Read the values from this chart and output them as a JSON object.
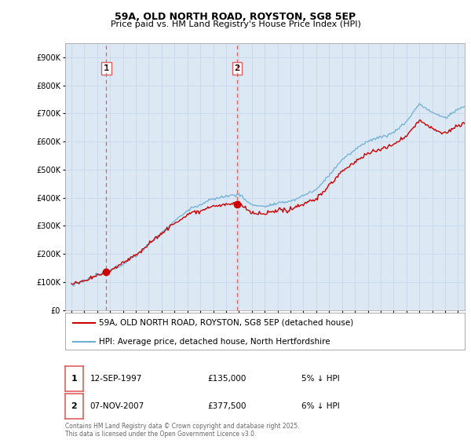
{
  "title1": "59A, OLD NORTH ROAD, ROYSTON, SG8 5EP",
  "title2": "Price paid vs. HM Land Registry's House Price Index (HPI)",
  "legend_line1": "59A, OLD NORTH ROAD, ROYSTON, SG8 5EP (detached house)",
  "legend_line2": "HPI: Average price, detached house, North Hertfordshire",
  "footer": "Contains HM Land Registry data © Crown copyright and database right 2025.\nThis data is licensed under the Open Government Licence v3.0.",
  "transaction1_label": "1",
  "transaction1_date": "12-SEP-1997",
  "transaction1_price": "£135,000",
  "transaction1_note": "5% ↓ HPI",
  "transaction2_label": "2",
  "transaction2_date": "07-NOV-2007",
  "transaction2_price": "£377,500",
  "transaction2_note": "6% ↓ HPI",
  "vline1_x": 1997.7,
  "vline2_x": 2007.85,
  "sale1_x": 1997.7,
  "sale1_y": 135000,
  "sale2_x": 2007.85,
  "sale2_y": 377500,
  "property_line_color": "#cc0000",
  "hpi_line_color": "#6baed6",
  "vline_color": "#e06060",
  "ylim": [
    0,
    950000
  ],
  "xlim_start": 1994.5,
  "xlim_end": 2025.5,
  "chart_bg_color": "#dce9f5",
  "background_color": "#ffffff",
  "grid_color": "#c8d8e8"
}
